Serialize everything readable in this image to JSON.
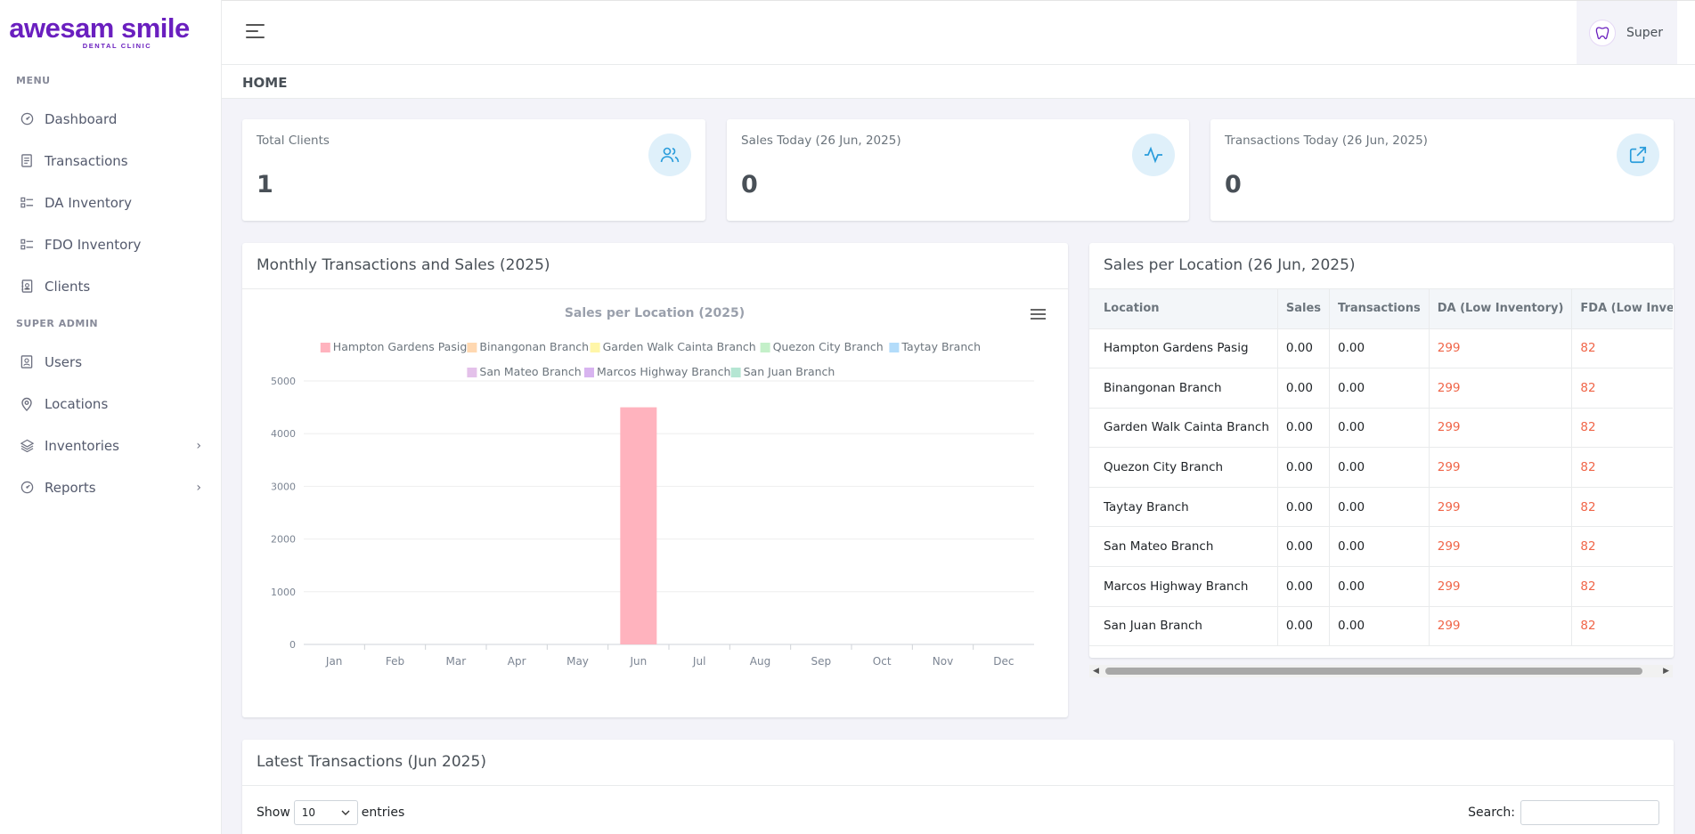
{
  "brand": {
    "name": "awesam smile",
    "tagline": "DENTAL CLINIC"
  },
  "sidebar": {
    "menu_title": "MENU",
    "menu_items": [
      {
        "label": "Dashboard",
        "icon": "dashboard-icon"
      },
      {
        "label": "Transactions",
        "icon": "file-text-icon"
      },
      {
        "label": "DA Inventory",
        "icon": "list-check-icon"
      },
      {
        "label": "FDO Inventory",
        "icon": "list-check-icon"
      },
      {
        "label": "Clients",
        "icon": "contacts-book-icon"
      }
    ],
    "admin_title": "SUPER ADMIN",
    "admin_items": [
      {
        "label": "Users",
        "icon": "user-icon"
      },
      {
        "label": "Locations",
        "icon": "map-pin-icon"
      },
      {
        "label": "Inventories",
        "icon": "stack-icon"
      },
      {
        "label": "Reports",
        "icon": "dashboard-icon"
      }
    ]
  },
  "topbar": {
    "user_name": "Super"
  },
  "page": {
    "title": "HOME"
  },
  "stats": [
    {
      "label": "Total Clients",
      "value": "1",
      "icon": "users-icon"
    },
    {
      "label": "Sales Today (26 Jun, 2025)",
      "value": "0",
      "icon": "pulse-icon"
    },
    {
      "label": "Transactions Today (26 Jun, 2025)",
      "value": "0",
      "icon": "external-link-icon"
    }
  ],
  "monthly_card": {
    "title": "Monthly Transactions and Sales (2025)"
  },
  "chart_data": {
    "type": "bar",
    "title": "Sales per Location (2025)",
    "categories": [
      "Jan",
      "Feb",
      "Mar",
      "Apr",
      "May",
      "Jun",
      "Jul",
      "Aug",
      "Sep",
      "Oct",
      "Nov",
      "Dec"
    ],
    "ylim": [
      0,
      5000
    ],
    "yticks": [
      0,
      1000,
      2000,
      3000,
      4000,
      5000
    ],
    "grid": true,
    "legend_position": "top",
    "series": [
      {
        "name": "Hampton Gardens Pasig",
        "color": "#ffb3be",
        "values": [
          0,
          0,
          0,
          0,
          0,
          4500,
          0,
          0,
          0,
          0,
          0,
          0
        ]
      },
      {
        "name": "Binangonan Branch",
        "color": "#ffd8b1",
        "values": [
          0,
          0,
          0,
          0,
          0,
          0,
          0,
          0,
          0,
          0,
          0,
          0
        ]
      },
      {
        "name": "Garden Walk Cainta Branch",
        "color": "#fff6a8",
        "values": [
          0,
          0,
          0,
          0,
          0,
          0,
          0,
          0,
          0,
          0,
          0,
          0
        ]
      },
      {
        "name": "Quezon City Branch",
        "color": "#c4f0c9",
        "values": [
          0,
          0,
          0,
          0,
          0,
          0,
          0,
          0,
          0,
          0,
          0,
          0
        ]
      },
      {
        "name": "Taytay Branch",
        "color": "#b3dcfa",
        "values": [
          0,
          0,
          0,
          0,
          0,
          0,
          0,
          0,
          0,
          0,
          0,
          0
        ]
      },
      {
        "name": "San Mateo Branch",
        "color": "#e4c1ea",
        "values": [
          0,
          0,
          0,
          0,
          0,
          0,
          0,
          0,
          0,
          0,
          0,
          0
        ]
      },
      {
        "name": "Marcos Highway Branch",
        "color": "#d8b4f0",
        "values": [
          0,
          0,
          0,
          0,
          0,
          0,
          0,
          0,
          0,
          0,
          0,
          0
        ]
      },
      {
        "name": "San Juan Branch",
        "color": "#b5e6d3",
        "values": [
          0,
          0,
          0,
          0,
          0,
          0,
          0,
          0,
          0,
          0,
          0,
          0
        ]
      }
    ]
  },
  "location_card": {
    "title": "Sales per Location (26 Jun, 2025)",
    "columns": [
      "Location",
      "Sales",
      "Transactions",
      "DA (Low Inventory)",
      "FDA (Low Inventory)"
    ],
    "rows": [
      [
        "Hampton Gardens Pasig",
        "0.00",
        "0.00",
        "299",
        "82"
      ],
      [
        "Binangonan Branch",
        "0.00",
        "0.00",
        "299",
        "82"
      ],
      [
        "Garden Walk Cainta Branch",
        "0.00",
        "0.00",
        "299",
        "82"
      ],
      [
        "Quezon City Branch",
        "0.00",
        "0.00",
        "299",
        "82"
      ],
      [
        "Taytay Branch",
        "0.00",
        "0.00",
        "299",
        "82"
      ],
      [
        "San Mateo Branch",
        "0.00",
        "0.00",
        "299",
        "82"
      ],
      [
        "Marcos Highway Branch",
        "0.00",
        "0.00",
        "299",
        "82"
      ],
      [
        "San Juan Branch",
        "0.00",
        "0.00",
        "299",
        "82"
      ]
    ]
  },
  "latest_card": {
    "title": "Latest Transactions (Jun 2025)",
    "show_label": "Show",
    "entries_value": "10",
    "entries_label": "entries",
    "search_label": "Search:"
  }
}
